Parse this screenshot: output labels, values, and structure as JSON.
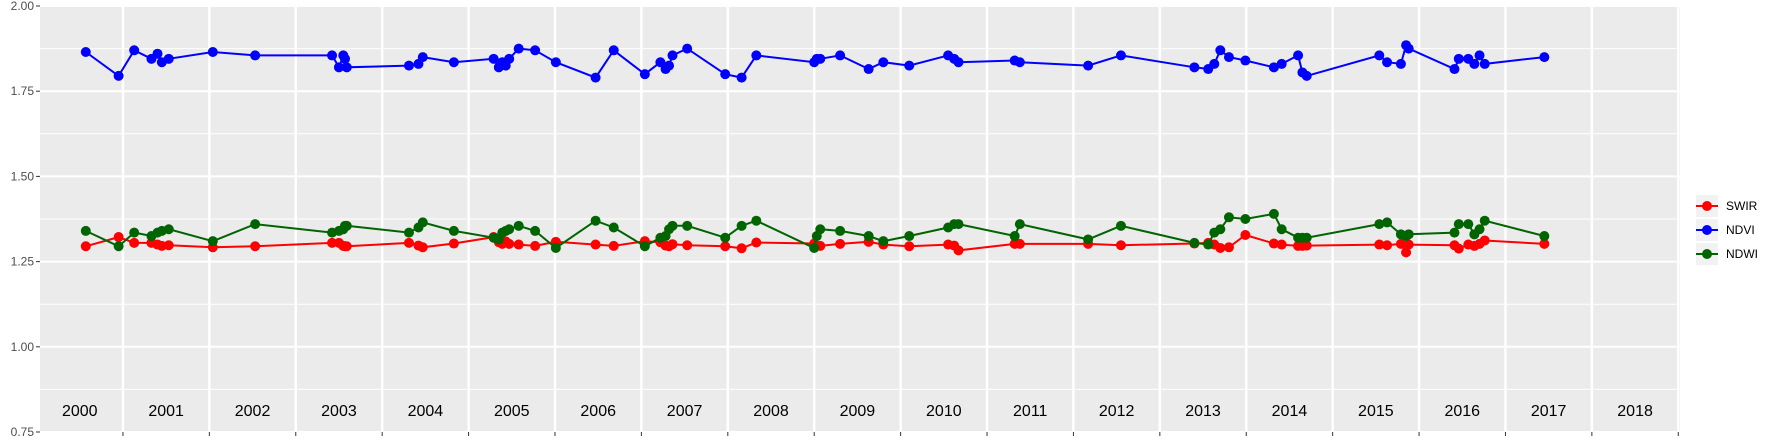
{
  "colors": {
    "panel": "#EBEBEB",
    "grid": "#FFFFFF",
    "SWIR": "#FF0000",
    "NDVI": "#0000FF",
    "NDWI": "#006400"
  },
  "chart_data": {
    "type": "line",
    "title": "",
    "xlabel": "",
    "ylabel": "",
    "xlim": [
      1999.54,
      2018.52
    ],
    "ylim": [
      0.75,
      2.0
    ],
    "yticks": [
      "0.75",
      "1.00",
      "1.25",
      "1.50",
      "1.75",
      "2.00"
    ],
    "year_labels": [
      "2000",
      "2001",
      "2002",
      "2003",
      "2004",
      "2005",
      "2006",
      "2007",
      "2008",
      "2009",
      "2010",
      "2011",
      "2012",
      "2013",
      "2014",
      "2015",
      "2016",
      "2017",
      "2018"
    ],
    "grid": true,
    "legend_position": "right",
    "series": [
      {
        "name": "SWIR",
        "color": "#FF0000",
        "points": [
          [
            2000.07,
            1.295
          ],
          [
            2000.45,
            1.322
          ],
          [
            2000.63,
            1.305
          ],
          [
            2000.83,
            1.305
          ],
          [
            2000.9,
            1.3
          ],
          [
            2000.95,
            1.296
          ],
          [
            2001.03,
            1.298
          ],
          [
            2001.54,
            1.292
          ],
          [
            2002.03,
            1.295
          ],
          [
            2002.92,
            1.305
          ],
          [
            2003.0,
            1.305
          ],
          [
            2003.05,
            1.296
          ],
          [
            2003.07,
            1.295
          ],
          [
            2003.09,
            1.295
          ],
          [
            2003.81,
            1.305
          ],
          [
            2003.92,
            1.297
          ],
          [
            2003.97,
            1.292
          ],
          [
            2004.33,
            1.303
          ],
          [
            2004.79,
            1.322
          ],
          [
            2004.85,
            1.307
          ],
          [
            2004.89,
            1.302
          ],
          [
            2004.93,
            1.309
          ],
          [
            2004.97,
            1.302
          ],
          [
            2005.08,
            1.3
          ],
          [
            2005.27,
            1.296
          ],
          [
            2005.51,
            1.308
          ],
          [
            2005.97,
            1.3
          ],
          [
            2006.18,
            1.296
          ],
          [
            2006.54,
            1.31
          ],
          [
            2006.72,
            1.307
          ],
          [
            2006.78,
            1.297
          ],
          [
            2006.82,
            1.295
          ],
          [
            2006.86,
            1.301
          ],
          [
            2007.03,
            1.298
          ],
          [
            2007.47,
            1.295
          ],
          [
            2007.66,
            1.289
          ],
          [
            2007.83,
            1.306
          ],
          [
            2008.5,
            1.303
          ],
          [
            2008.53,
            1.297
          ],
          [
            2008.57,
            1.296
          ],
          [
            2008.8,
            1.302
          ],
          [
            2009.13,
            1.308
          ],
          [
            2009.3,
            1.3
          ],
          [
            2009.6,
            1.295
          ],
          [
            2010.05,
            1.3
          ],
          [
            2010.12,
            1.297
          ],
          [
            2010.17,
            1.283
          ],
          [
            2010.82,
            1.302
          ],
          [
            2010.88,
            1.302
          ],
          [
            2011.67,
            1.302
          ],
          [
            2012.05,
            1.298
          ],
          [
            2012.9,
            1.303
          ],
          [
            2013.06,
            1.305
          ],
          [
            2013.13,
            1.3
          ],
          [
            2013.2,
            1.29
          ],
          [
            2013.3,
            1.292
          ],
          [
            2013.49,
            1.328
          ],
          [
            2013.82,
            1.303
          ],
          [
            2013.91,
            1.3
          ],
          [
            2014.1,
            1.296
          ],
          [
            2014.15,
            1.296
          ],
          [
            2014.2,
            1.297
          ],
          [
            2015.04,
            1.3
          ],
          [
            2015.13,
            1.298
          ],
          [
            2015.29,
            1.302
          ],
          [
            2015.35,
            1.277
          ],
          [
            2015.38,
            1.3
          ],
          [
            2015.91,
            1.298
          ],
          [
            2015.96,
            1.288
          ],
          [
            2016.07,
            1.3
          ],
          [
            2016.14,
            1.296
          ],
          [
            2016.2,
            1.302
          ],
          [
            2016.26,
            1.312
          ],
          [
            2016.95,
            1.302
          ]
        ]
      },
      {
        "name": "NDVI",
        "color": "#0000FF",
        "points": [
          [
            2000.07,
            1.865
          ],
          [
            2000.45,
            1.795
          ],
          [
            2000.63,
            1.87
          ],
          [
            2000.83,
            1.845
          ],
          [
            2000.9,
            1.86
          ],
          [
            2000.95,
            1.835
          ],
          [
            2001.03,
            1.845
          ],
          [
            2001.54,
            1.865
          ],
          [
            2002.03,
            1.855
          ],
          [
            2002.92,
            1.855
          ],
          [
            2003.0,
            1.82
          ],
          [
            2003.05,
            1.855
          ],
          [
            2003.07,
            1.845
          ],
          [
            2003.09,
            1.82
          ],
          [
            2003.81,
            1.825
          ],
          [
            2003.92,
            1.83
          ],
          [
            2003.97,
            1.85
          ],
          [
            2004.33,
            1.835
          ],
          [
            2004.79,
            1.845
          ],
          [
            2004.85,
            1.82
          ],
          [
            2004.89,
            1.835
          ],
          [
            2004.93,
            1.825
          ],
          [
            2004.97,
            1.845
          ],
          [
            2005.08,
            1.875
          ],
          [
            2005.27,
            1.87
          ],
          [
            2005.51,
            1.835
          ],
          [
            2005.97,
            1.79
          ],
          [
            2006.18,
            1.87
          ],
          [
            2006.54,
            1.8
          ],
          [
            2006.72,
            1.835
          ],
          [
            2006.78,
            1.815
          ],
          [
            2006.82,
            1.825
          ],
          [
            2006.86,
            1.855
          ],
          [
            2007.03,
            1.875
          ],
          [
            2007.47,
            1.8
          ],
          [
            2007.66,
            1.79
          ],
          [
            2007.83,
            1.855
          ],
          [
            2008.5,
            1.835
          ],
          [
            2008.53,
            1.845
          ],
          [
            2008.57,
            1.845
          ],
          [
            2008.8,
            1.855
          ],
          [
            2009.13,
            1.815
          ],
          [
            2009.3,
            1.835
          ],
          [
            2009.6,
            1.825
          ],
          [
            2010.05,
            1.855
          ],
          [
            2010.12,
            1.845
          ],
          [
            2010.17,
            1.835
          ],
          [
            2010.82,
            1.84
          ],
          [
            2010.88,
            1.835
          ],
          [
            2011.67,
            1.825
          ],
          [
            2012.05,
            1.855
          ],
          [
            2012.9,
            1.82
          ],
          [
            2013.06,
            1.815
          ],
          [
            2013.13,
            1.83
          ],
          [
            2013.2,
            1.87
          ],
          [
            2013.3,
            1.85
          ],
          [
            2013.49,
            1.84
          ],
          [
            2013.82,
            1.82
          ],
          [
            2013.91,
            1.83
          ],
          [
            2014.1,
            1.855
          ],
          [
            2014.15,
            1.805
          ],
          [
            2014.2,
            1.795
          ],
          [
            2015.04,
            1.855
          ],
          [
            2015.13,
            1.835
          ],
          [
            2015.29,
            1.83
          ],
          [
            2015.35,
            1.885
          ],
          [
            2015.38,
            1.875
          ],
          [
            2015.91,
            1.815
          ],
          [
            2015.96,
            1.845
          ],
          [
            2016.07,
            1.845
          ],
          [
            2016.14,
            1.83
          ],
          [
            2016.2,
            1.855
          ],
          [
            2016.26,
            1.83
          ],
          [
            2016.95,
            1.85
          ]
        ]
      },
      {
        "name": "NDWI",
        "color": "#006400",
        "points": [
          [
            2000.07,
            1.34
          ],
          [
            2000.45,
            1.295
          ],
          [
            2000.63,
            1.335
          ],
          [
            2000.83,
            1.325
          ],
          [
            2000.9,
            1.335
          ],
          [
            2000.95,
            1.34
          ],
          [
            2001.03,
            1.345
          ],
          [
            2001.54,
            1.31
          ],
          [
            2002.03,
            1.36
          ],
          [
            2002.92,
            1.335
          ],
          [
            2003.0,
            1.34
          ],
          [
            2003.05,
            1.345
          ],
          [
            2003.07,
            1.355
          ],
          [
            2003.09,
            1.355
          ],
          [
            2003.81,
            1.335
          ],
          [
            2003.92,
            1.35
          ],
          [
            2003.97,
            1.365
          ],
          [
            2004.33,
            1.34
          ],
          [
            2004.79,
            1.32
          ],
          [
            2004.85,
            1.315
          ],
          [
            2004.89,
            1.335
          ],
          [
            2004.93,
            1.34
          ],
          [
            2004.97,
            1.345
          ],
          [
            2005.08,
            1.355
          ],
          [
            2005.27,
            1.34
          ],
          [
            2005.51,
            1.29
          ],
          [
            2005.97,
            1.37
          ],
          [
            2006.18,
            1.35
          ],
          [
            2006.54,
            1.295
          ],
          [
            2006.72,
            1.32
          ],
          [
            2006.78,
            1.325
          ],
          [
            2006.82,
            1.345
          ],
          [
            2006.86,
            1.355
          ],
          [
            2007.03,
            1.355
          ],
          [
            2007.47,
            1.32
          ],
          [
            2007.66,
            1.355
          ],
          [
            2007.83,
            1.37
          ],
          [
            2008.5,
            1.29
          ],
          [
            2008.53,
            1.325
          ],
          [
            2008.57,
            1.345
          ],
          [
            2008.8,
            1.34
          ],
          [
            2009.13,
            1.325
          ],
          [
            2009.3,
            1.31
          ],
          [
            2009.6,
            1.325
          ],
          [
            2010.05,
            1.35
          ],
          [
            2010.12,
            1.36
          ],
          [
            2010.17,
            1.36
          ],
          [
            2010.82,
            1.325
          ],
          [
            2010.88,
            1.36
          ],
          [
            2011.67,
            1.315
          ],
          [
            2012.05,
            1.355
          ],
          [
            2012.9,
            1.305
          ],
          [
            2013.06,
            1.3
          ],
          [
            2013.13,
            1.335
          ],
          [
            2013.2,
            1.345
          ],
          [
            2013.3,
            1.38
          ],
          [
            2013.49,
            1.375
          ],
          [
            2013.82,
            1.39
          ],
          [
            2013.91,
            1.345
          ],
          [
            2014.1,
            1.32
          ],
          [
            2014.15,
            1.32
          ],
          [
            2014.2,
            1.32
          ],
          [
            2015.04,
            1.36
          ],
          [
            2015.13,
            1.365
          ],
          [
            2015.29,
            1.33
          ],
          [
            2015.35,
            1.325
          ],
          [
            2015.38,
            1.33
          ],
          [
            2015.91,
            1.335
          ],
          [
            2015.96,
            1.36
          ],
          [
            2016.07,
            1.36
          ],
          [
            2016.14,
            1.33
          ],
          [
            2016.2,
            1.345
          ],
          [
            2016.26,
            1.37
          ],
          [
            2016.95,
            1.325
          ]
        ]
      }
    ],
    "legend": [
      {
        "label": "SWIR",
        "color": "#FF0000"
      },
      {
        "label": "NDVI",
        "color": "#0000FF"
      },
      {
        "label": "NDWI",
        "color": "#006400"
      }
    ]
  }
}
